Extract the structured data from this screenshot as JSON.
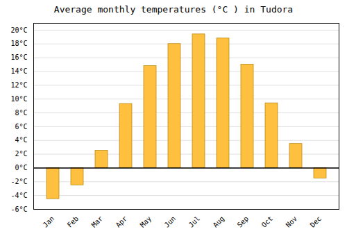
{
  "chart_data": {
    "type": "bar",
    "title": "Average monthly temperatures (°C ) in Tudora",
    "categories": [
      "Jan",
      "Feb",
      "Mar",
      "Apr",
      "May",
      "Jun",
      "Jul",
      "Aug",
      "Sep",
      "Oct",
      "Nov",
      "Dec"
    ],
    "values": [
      -4.5,
      -2.5,
      2.5,
      9.3,
      14.8,
      18.0,
      19.4,
      18.8,
      15.0,
      9.4,
      3.5,
      -1.5
    ],
    "color": "#FFC040",
    "ylim": [
      -6,
      21
    ],
    "yticks": [
      {
        "value": -6,
        "label": "-6°C"
      },
      {
        "value": -4,
        "label": "-4°C"
      },
      {
        "value": -2,
        "label": "-2°C"
      },
      {
        "value": 0,
        "label": "0°C"
      },
      {
        "value": 2,
        "label": "2°C"
      },
      {
        "value": 4,
        "label": "4°C"
      },
      {
        "value": 6,
        "label": "6°C"
      },
      {
        "value": 8,
        "label": "8°C"
      },
      {
        "value": 10,
        "label": "10°C"
      },
      {
        "value": 12,
        "label": "12°C"
      },
      {
        "value": 14,
        "label": "14°C"
      },
      {
        "value": 16,
        "label": "16°C"
      },
      {
        "value": 18,
        "label": "18°C"
      },
      {
        "value": 20,
        "label": "20°C"
      }
    ],
    "grid": true
  }
}
